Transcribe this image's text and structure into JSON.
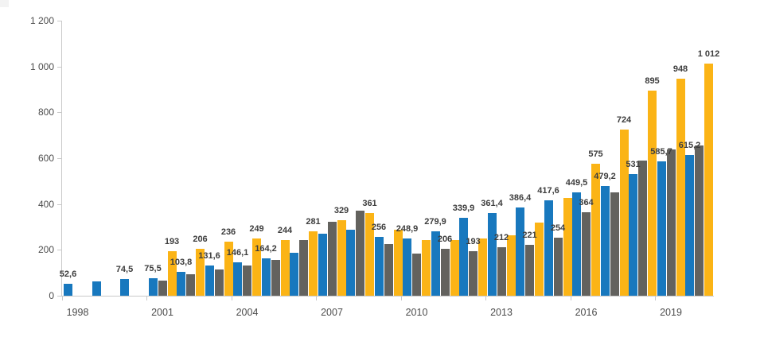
{
  "chart_data": {
    "type": "bar",
    "title": "",
    "legend": "none",
    "grid": "off",
    "categories": [
      1998,
      1999,
      2000,
      2001,
      2002,
      2003,
      2004,
      2005,
      2006,
      2007,
      2008,
      2009,
      2010,
      2011,
      2012,
      2013,
      2014,
      2015,
      2016,
      2017,
      2018,
      2019,
      2020
    ],
    "series": [
      {
        "name": "blue-series",
        "color": "#1878be",
        "values": [
          52.6,
          62,
          74.5,
          75.5,
          103.8,
          131.6,
          146.1,
          164.2,
          186,
          269,
          289,
          256,
          248.9,
          279.9,
          339.9,
          361.4,
          386.4,
          417.6,
          449.5,
          479.2,
          531,
          585.7,
          615.2
        ],
        "labels": [
          "52,6",
          null,
          "74,5",
          "75,5",
          "103,8",
          "131,6",
          "146,1",
          "164,2",
          null,
          null,
          null,
          "256",
          "248,9",
          "279,9",
          "339,9",
          "361,4",
          "386,4",
          "417,6",
          "449,5",
          "479,2",
          "531",
          "585,7",
          "615,2"
        ]
      },
      {
        "name": "gray-series",
        "color": "#63625e",
        "values": [
          null,
          null,
          null,
          66,
          94,
          114,
          131,
          156,
          242,
          322,
          372,
          224,
          185,
          206,
          193,
          212,
          221,
          254,
          364,
          450,
          590,
          637,
          654
        ],
        "labels": [
          null,
          null,
          null,
          null,
          null,
          null,
          null,
          null,
          null,
          null,
          null,
          null,
          null,
          "206",
          "193",
          "212",
          "221",
          "254",
          "364",
          null,
          null,
          null,
          null
        ]
      },
      {
        "name": "yellow-series",
        "color": "#fbb416",
        "values": [
          null,
          null,
          null,
          193,
          206,
          236,
          249,
          244,
          281,
          329,
          361,
          289,
          243,
          243,
          249,
          262,
          318,
          426,
          575,
          724,
          895,
          948,
          1012
        ],
        "labels": [
          null,
          null,
          null,
          "193",
          "206",
          "236",
          "249",
          "244",
          "281",
          "329",
          "361",
          null,
          null,
          null,
          null,
          null,
          null,
          null,
          "575",
          "724",
          "895",
          "948",
          "1 012"
        ]
      }
    ],
    "y_axis": {
      "min": 0,
      "max": 1200,
      "step": 200,
      "tick_labels": [
        "0",
        "200",
        "400",
        "600",
        "800",
        "1 000",
        "1 200"
      ]
    },
    "x_axis": {
      "tick_labels": [
        "1998",
        "2001",
        "2004",
        "2007",
        "2010",
        "2013",
        "2016",
        "2019"
      ],
      "tick_years": [
        1998,
        2001,
        2004,
        2007,
        2010,
        2013,
        2016,
        2019
      ]
    }
  },
  "colors": {
    "axis_line": "#c9c9c9",
    "axis_text": "#4c4c4c",
    "value_label_text": "#3d3d3d",
    "background": "#ffffff"
  }
}
